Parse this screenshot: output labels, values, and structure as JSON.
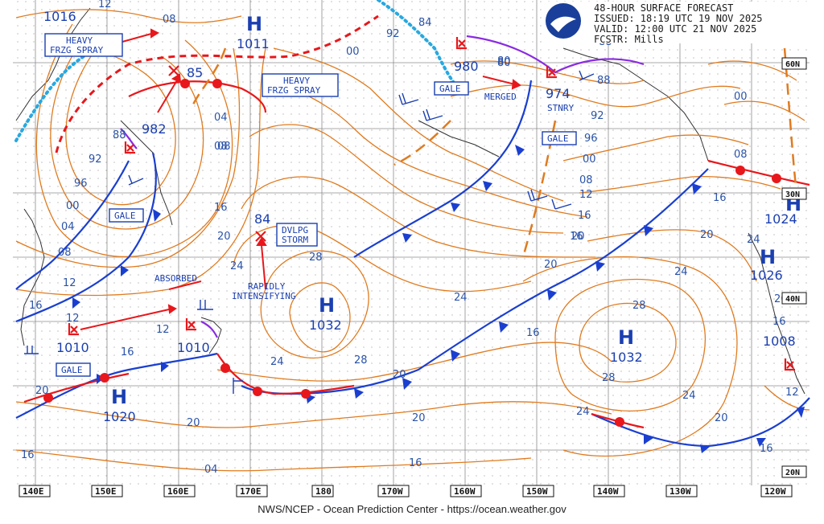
{
  "header": {
    "title": "48-HOUR SURFACE FORECAST",
    "issued": "ISSUED: 18:19 UTC 19 NOV 2025",
    "valid": "VALID:  12:00 UTC 21 NOV 2025",
    "forecaster": "FCSTR:  Mills"
  },
  "footer": "NWS/NCEP - Ocean Prediction Center - https://ocean.weather.gov",
  "longitude_labels": [
    "140E",
    "150E",
    "160E",
    "170E",
    "180",
    "170W",
    "160W",
    "150W",
    "140W",
    "130W",
    "120W"
  ],
  "latitude_labels": [
    "60N",
    "40N",
    "20N",
    "30N"
  ],
  "highs": [
    {
      "letter": "H",
      "pressure": "1011"
    },
    {
      "letter": "H",
      "pressure": "1032"
    },
    {
      "letter": "H",
      "pressure": "1032"
    },
    {
      "letter": "H",
      "pressure": "1020"
    },
    {
      "letter": "H",
      "pressure": "1024"
    },
    {
      "letter": "H",
      "pressure": "1026"
    }
  ],
  "lows": [
    {
      "pressure": "982"
    },
    {
      "pressure": "980"
    },
    {
      "pressure": "974"
    },
    {
      "pressure": "1010"
    },
    {
      "pressure": "1010"
    },
    {
      "pressure": "1008"
    },
    {
      "pressure": "85"
    },
    {
      "pressure": "84"
    }
  ],
  "pressure_1016": "1016",
  "boxes": {
    "frzg_left_1": "HEAVY",
    "frzg_left_2": "FRZG SPRAY",
    "frzg_mid_1": "HEAVY",
    "frzg_mid_2": "FRZG SPRAY",
    "gale_1": "GALE",
    "gale_2": "GALE",
    "gale_3": "GALE",
    "gale_4": "GALE",
    "dvlpg_1": "DVLPG",
    "dvlpg_2": "STORM"
  },
  "annotations": {
    "absorbed": "ABSORBED",
    "rapidly": "RAPIDLY",
    "intensifying": "INTENSIFYING",
    "merged": "MERGED",
    "stnry": "STNRY"
  },
  "isobar_labels": [
    "12",
    "08",
    "92",
    "00",
    "84",
    "88",
    "80",
    "04",
    "08",
    "92",
    "96",
    "04",
    "08",
    "12",
    "16",
    "20",
    "24",
    "28",
    "24",
    "20",
    "16",
    "88",
    "00",
    "08",
    "16",
    "20",
    "24",
    "28",
    "24",
    "20",
    "16",
    "20",
    "16",
    "12",
    "16",
    "20",
    "12",
    "24",
    "28",
    "20",
    "16",
    "04",
    "08",
    "12",
    "16",
    "20",
    "00",
    "96",
    "92",
    "88",
    "80",
    "24",
    "28",
    "20",
    "24",
    "16",
    "20",
    "12",
    "16",
    "00",
    "08",
    "16"
  ],
  "colors": {
    "isobar": "#e07b1f",
    "label": "#2a53a8",
    "cold_front": "#1a3fd0",
    "warm_front": "#e8171b",
    "occluded": "#8a2be2",
    "ice": "#28a8e0"
  }
}
